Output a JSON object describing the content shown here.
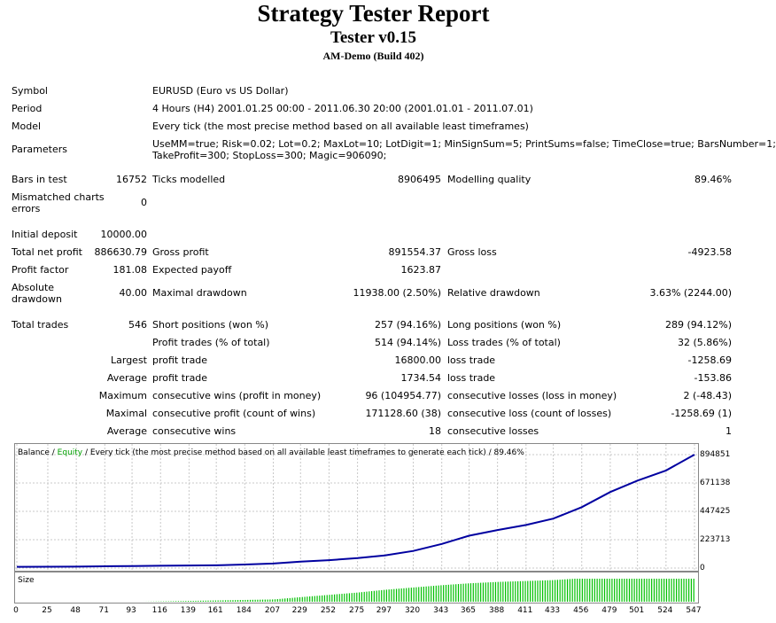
{
  "header": {
    "title": "Strategy Tester Report",
    "subtitle": "Tester v0.15",
    "server": "AM-Demo (Build 402)"
  },
  "info": {
    "symbol_label": "Symbol",
    "symbol_value": "EURUSD (Euro vs US Dollar)",
    "period_label": "Period",
    "period_value": "4 Hours (H4) 2001.01.25 00:00 - 2011.06.30 20:00 (2001.01.01 - 2011.07.01)",
    "model_label": "Model",
    "model_value": "Every tick (the most precise method based on all available least timeframes)",
    "params_label": "Parameters",
    "params_line1": "UseMM=true; Risk=0.02; Lot=0.2; MaxLot=10; LotDigit=1; MinSignSum=5; PrintSums=false; TimeClose=true; BarsNumber=1;",
    "params_line2": "TakeProfit=300; StopLoss=300; Magic=906090;"
  },
  "stats": {
    "bars_label": "Bars in test",
    "bars_value": "16752",
    "ticks_label": "Ticks modelled",
    "ticks_value": "8906495",
    "quality_label": "Modelling quality",
    "quality_value": "89.46%",
    "mismatch_label_1": "Mismatched charts",
    "mismatch_label_2": "errors",
    "mismatch_value": "0",
    "deposit_label": "Initial deposit",
    "deposit_value": "10000.00",
    "netprofit_label": "Total net profit",
    "netprofit_value": "886630.79",
    "grossprofit_label": "Gross profit",
    "grossprofit_value": "891554.37",
    "grossloss_label": "Gross loss",
    "grossloss_value": "-4923.58",
    "pf_label": "Profit factor",
    "pf_value": "181.08",
    "payoff_label": "Expected payoff",
    "payoff_value": "1623.87",
    "absdd_label_1": "Absolute",
    "absdd_label_2": "drawdown",
    "absdd_value": "40.00",
    "maxdd_label": "Maximal drawdown",
    "maxdd_value": "11938.00 (2.50%)",
    "reldd_label": "Relative drawdown",
    "reldd_value": "3.63% (2244.00)",
    "trades_label": "Total trades",
    "trades_value": "546",
    "short_label": "Short positions (won %)",
    "short_value": "257 (94.16%)",
    "long_label": "Long positions (won %)",
    "long_value": "289 (94.12%)",
    "ptrades_label": "Profit trades (% of total)",
    "ptrades_value": "514 (94.14%)",
    "ltrades_label": "Loss trades (% of total)",
    "ltrades_value": "32 (5.86%)",
    "largest_label": "Largest",
    "lp_label": "profit trade",
    "lp_value": "16800.00",
    "ll_label": "loss trade",
    "ll_value": "-1258.69",
    "average_label": "Average",
    "ap_label": "profit trade",
    "ap_value": "1734.54",
    "al_label": "loss trade",
    "al_value": "-153.86",
    "maximum_label": "Maximum",
    "mcw_label": "consecutive wins (profit in money)",
    "mcw_value": "96 (104954.77)",
    "mcl_label": "consecutive losses (loss in money)",
    "mcl_value": "2 (-48.43)",
    "maximal_label": "Maximal",
    "mcp_label": "consecutive profit (count of wins)",
    "mcp_value": "171128.60 (38)",
    "mcloss_label": "consecutive loss (count of losses)",
    "mcloss_value": "-1258.69 (1)",
    "average2_label": "Average",
    "acw_label": "consecutive wins",
    "acw_value": "18",
    "acl_label": "consecutive losses",
    "acl_value": "1"
  },
  "chart_data": {
    "type": "line",
    "legend": {
      "balance": "Balance",
      "sep1": " / ",
      "equity": "Equity",
      "rest": " / Every tick (the most precise method based on all available least timeframes to generate each tick) / 89.46%"
    },
    "colors": {
      "balance": "#0000A0",
      "equity": "#00A000",
      "size": "#00C000",
      "grid": "#C8C8C8"
    },
    "ylim": [
      0,
      894851
    ],
    "y_ticks": [
      "894851",
      "671138",
      "447425",
      "223713",
      "0"
    ],
    "x_ticks": [
      "0",
      "25",
      "48",
      "71",
      "93",
      "116",
      "139",
      "161",
      "184",
      "207",
      "229",
      "252",
      "275",
      "297",
      "320",
      "343",
      "365",
      "388",
      "411",
      "433",
      "456",
      "479",
      "501",
      "524",
      "547"
    ],
    "xlim": [
      0,
      547
    ],
    "size_label": "Size",
    "series": [
      {
        "name": "Balance",
        "x": [
          0,
          25,
          48,
          71,
          93,
          116,
          139,
          161,
          184,
          207,
          229,
          252,
          275,
          297,
          320,
          343,
          365,
          388,
          411,
          433,
          456,
          479,
          501,
          524,
          547
        ],
        "y": [
          10000,
          10500,
          11500,
          14000,
          16000,
          18500,
          20000,
          22000,
          28000,
          36000,
          50000,
          62000,
          78000,
          100000,
          135000,
          190000,
          255000,
          300000,
          340000,
          390000,
          480000,
          600000,
          690000,
          770000,
          894851
        ]
      }
    ],
    "size": {
      "x": [
        0,
        100,
        207,
        229,
        252,
        275,
        297,
        320,
        343,
        365,
        388,
        411,
        433,
        450,
        547
      ],
      "y": [
        0,
        0,
        0.1,
        0.2,
        0.3,
        0.4,
        0.52,
        0.62,
        0.72,
        0.8,
        0.86,
        0.9,
        0.94,
        1.0,
        1.0
      ]
    }
  }
}
